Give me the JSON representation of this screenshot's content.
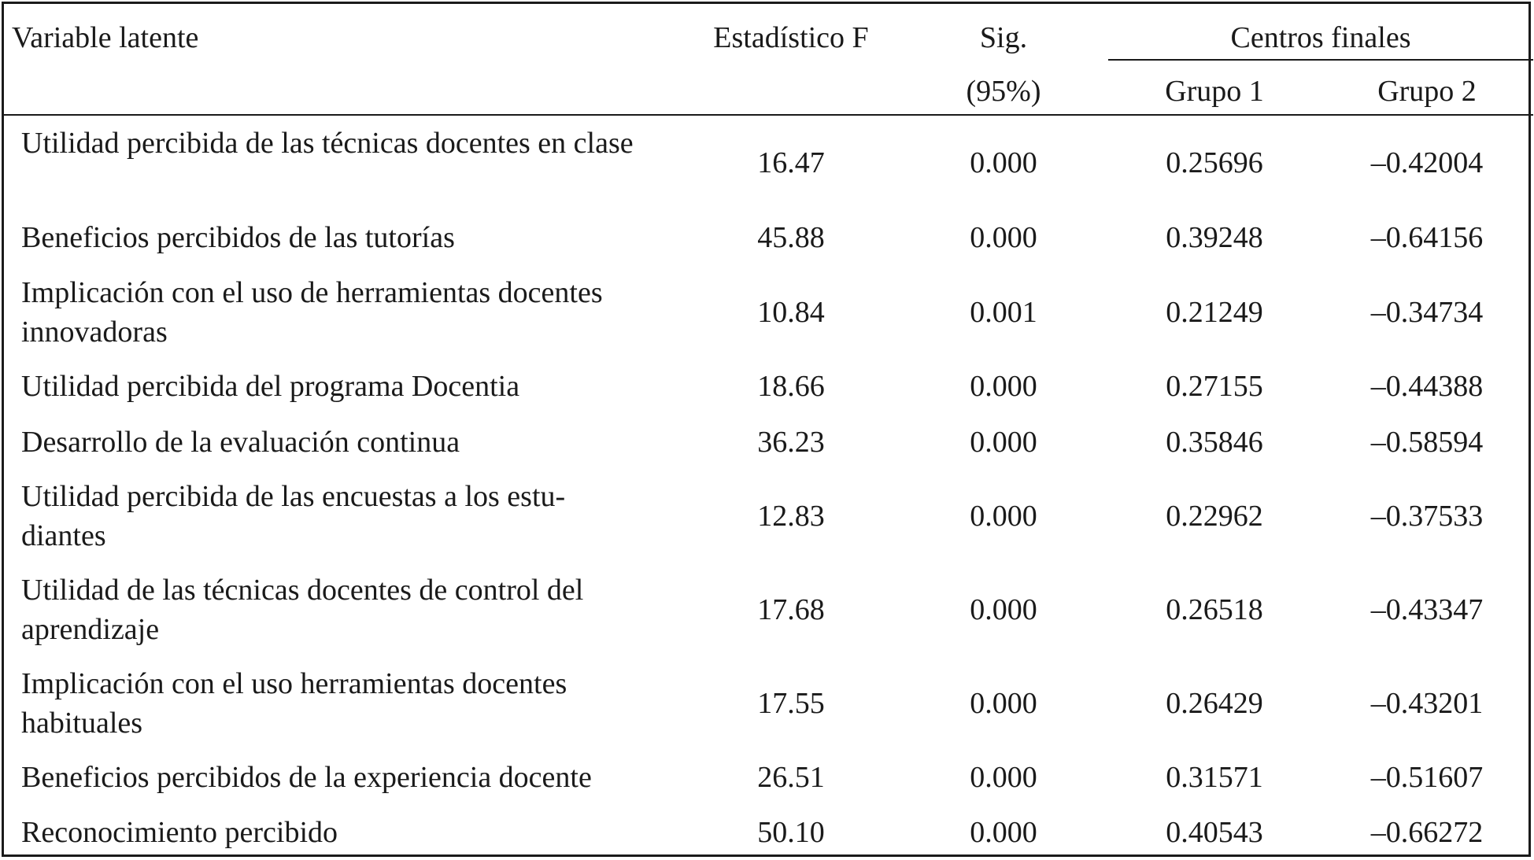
{
  "headers": {
    "variable": "Variable latente",
    "f_stat": "Estadístico F",
    "sig_line1": "Sig.",
    "sig_line2": "(95%)",
    "centers": "Centros finales",
    "group1": "Grupo 1",
    "group2": "Grupo 2"
  },
  "rows": [
    {
      "label": "Utilidad percibida de las técnicas docentes en clase",
      "f": "16.47",
      "sig": "0.000",
      "g1": "0.25696",
      "g2": "–0.42004"
    },
    {
      "label": "Beneficios percibidos de las tutorías",
      "f": "45.88",
      "sig": "0.000",
      "g1": "0.39248",
      "g2": "–0.64156"
    },
    {
      "label": "Implicación con el uso de herramientas docentes innovadoras",
      "f": "10.84",
      "sig": "0.001",
      "g1": "0.21249",
      "g2": "–0.34734"
    },
    {
      "label": "Utilidad percibida del programa Docentia",
      "f": "18.66",
      "sig": "0.000",
      "g1": "0.27155",
      "g2": "–0.44388"
    },
    {
      "label": "Desarrollo de la evaluación continua",
      "f": "36.23",
      "sig": "0.000",
      "g1": "0.35846",
      "g2": "–0.58594"
    },
    {
      "label": "Utilidad percibida de las encuestas a los estu-diantes",
      "f": "12.83",
      "sig": "0.000",
      "g1": "0.22962",
      "g2": "–0.37533"
    },
    {
      "label": "Utilidad de las técnicas docentes de control del aprendizaje",
      "f": "17.68",
      "sig": "0.000",
      "g1": "0.26518",
      "g2": "–0.43347"
    },
    {
      "label": "Implicación con el uso herramientas docentes habituales",
      "f": "17.55",
      "sig": "0.000",
      "g1": "0.26429",
      "g2": "–0.43201"
    },
    {
      "label": "Beneficios percibidos de la experiencia docente",
      "f": "26.51",
      "sig": "0.000",
      "g1": "0.31571",
      "g2": "–0.51607"
    },
    {
      "label": "Reconocimiento percibido",
      "f": "50.10",
      "sig": "0.000",
      "g1": "0.40543",
      "g2": "–0.66272"
    }
  ]
}
